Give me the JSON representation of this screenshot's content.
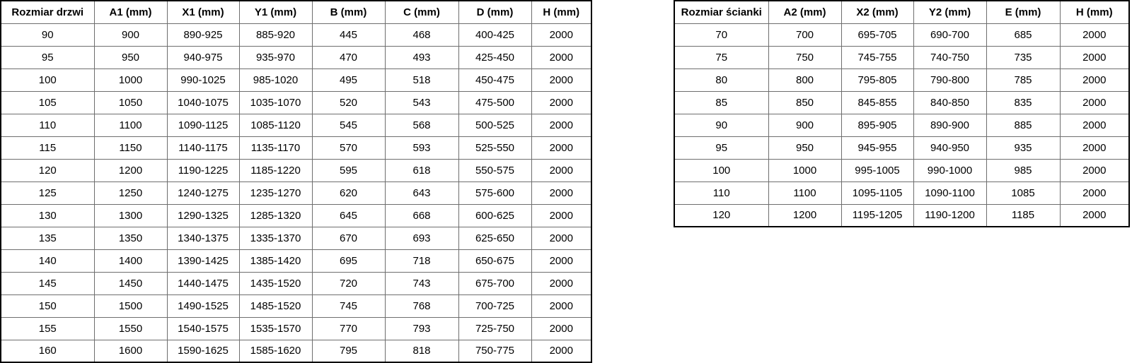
{
  "colors": {
    "background": "#ffffff",
    "outer_border": "#000000",
    "grid_line": "#6e6e6e",
    "text": "#000000"
  },
  "tables": [
    {
      "name": "door-size-table",
      "headers": [
        "Rozmiar drzwi",
        "A1 (mm)",
        "X1 (mm)",
        "Y1 (mm)",
        "B (mm)",
        "C (mm)",
        "D (mm)",
        "H (mm)"
      ],
      "rows": [
        [
          "90",
          "900",
          "890-925",
          "885-920",
          "445",
          "468",
          "400-425",
          "2000"
        ],
        [
          "95",
          "950",
          "940-975",
          "935-970",
          "470",
          "493",
          "425-450",
          "2000"
        ],
        [
          "100",
          "1000",
          "990-1025",
          "985-1020",
          "495",
          "518",
          "450-475",
          "2000"
        ],
        [
          "105",
          "1050",
          "1040-1075",
          "1035-1070",
          "520",
          "543",
          "475-500",
          "2000"
        ],
        [
          "110",
          "1100",
          "1090-1125",
          "1085-1120",
          "545",
          "568",
          "500-525",
          "2000"
        ],
        [
          "115",
          "1150",
          "1140-1175",
          "1135-1170",
          "570",
          "593",
          "525-550",
          "2000"
        ],
        [
          "120",
          "1200",
          "1190-1225",
          "1185-1220",
          "595",
          "618",
          "550-575",
          "2000"
        ],
        [
          "125",
          "1250",
          "1240-1275",
          "1235-1270",
          "620",
          "643",
          "575-600",
          "2000"
        ],
        [
          "130",
          "1300",
          "1290-1325",
          "1285-1320",
          "645",
          "668",
          "600-625",
          "2000"
        ],
        [
          "135",
          "1350",
          "1340-1375",
          "1335-1370",
          "670",
          "693",
          "625-650",
          "2000"
        ],
        [
          "140",
          "1400",
          "1390-1425",
          "1385-1420",
          "695",
          "718",
          "650-675",
          "2000"
        ],
        [
          "145",
          "1450",
          "1440-1475",
          "1435-1520",
          "720",
          "743",
          "675-700",
          "2000"
        ],
        [
          "150",
          "1500",
          "1490-1525",
          "1485-1520",
          "745",
          "768",
          "700-725",
          "2000"
        ],
        [
          "155",
          "1550",
          "1540-1575",
          "1535-1570",
          "770",
          "793",
          "725-750",
          "2000"
        ],
        [
          "160",
          "1600",
          "1590-1625",
          "1585-1620",
          "795",
          "818",
          "750-775",
          "2000"
        ]
      ]
    },
    {
      "name": "wall-size-table",
      "headers": [
        "Rozmiar ścianki",
        "A2 (mm)",
        "X2 (mm)",
        "Y2 (mm)",
        "E (mm)",
        "H (mm)"
      ],
      "rows": [
        [
          "70",
          "700",
          "695-705",
          "690-700",
          "685",
          "2000"
        ],
        [
          "75",
          "750",
          "745-755",
          "740-750",
          "735",
          "2000"
        ],
        [
          "80",
          "800",
          "795-805",
          "790-800",
          "785",
          "2000"
        ],
        [
          "85",
          "850",
          "845-855",
          "840-850",
          "835",
          "2000"
        ],
        [
          "90",
          "900",
          "895-905",
          "890-900",
          "885",
          "2000"
        ],
        [
          "95",
          "950",
          "945-955",
          "940-950",
          "935",
          "2000"
        ],
        [
          "100",
          "1000",
          "995-1005",
          "990-1000",
          "985",
          "2000"
        ],
        [
          "110",
          "1100",
          "1095-1105",
          "1090-1100",
          "1085",
          "2000"
        ],
        [
          "120",
          "1200",
          "1195-1205",
          "1190-1200",
          "1185",
          "2000"
        ]
      ]
    }
  ]
}
